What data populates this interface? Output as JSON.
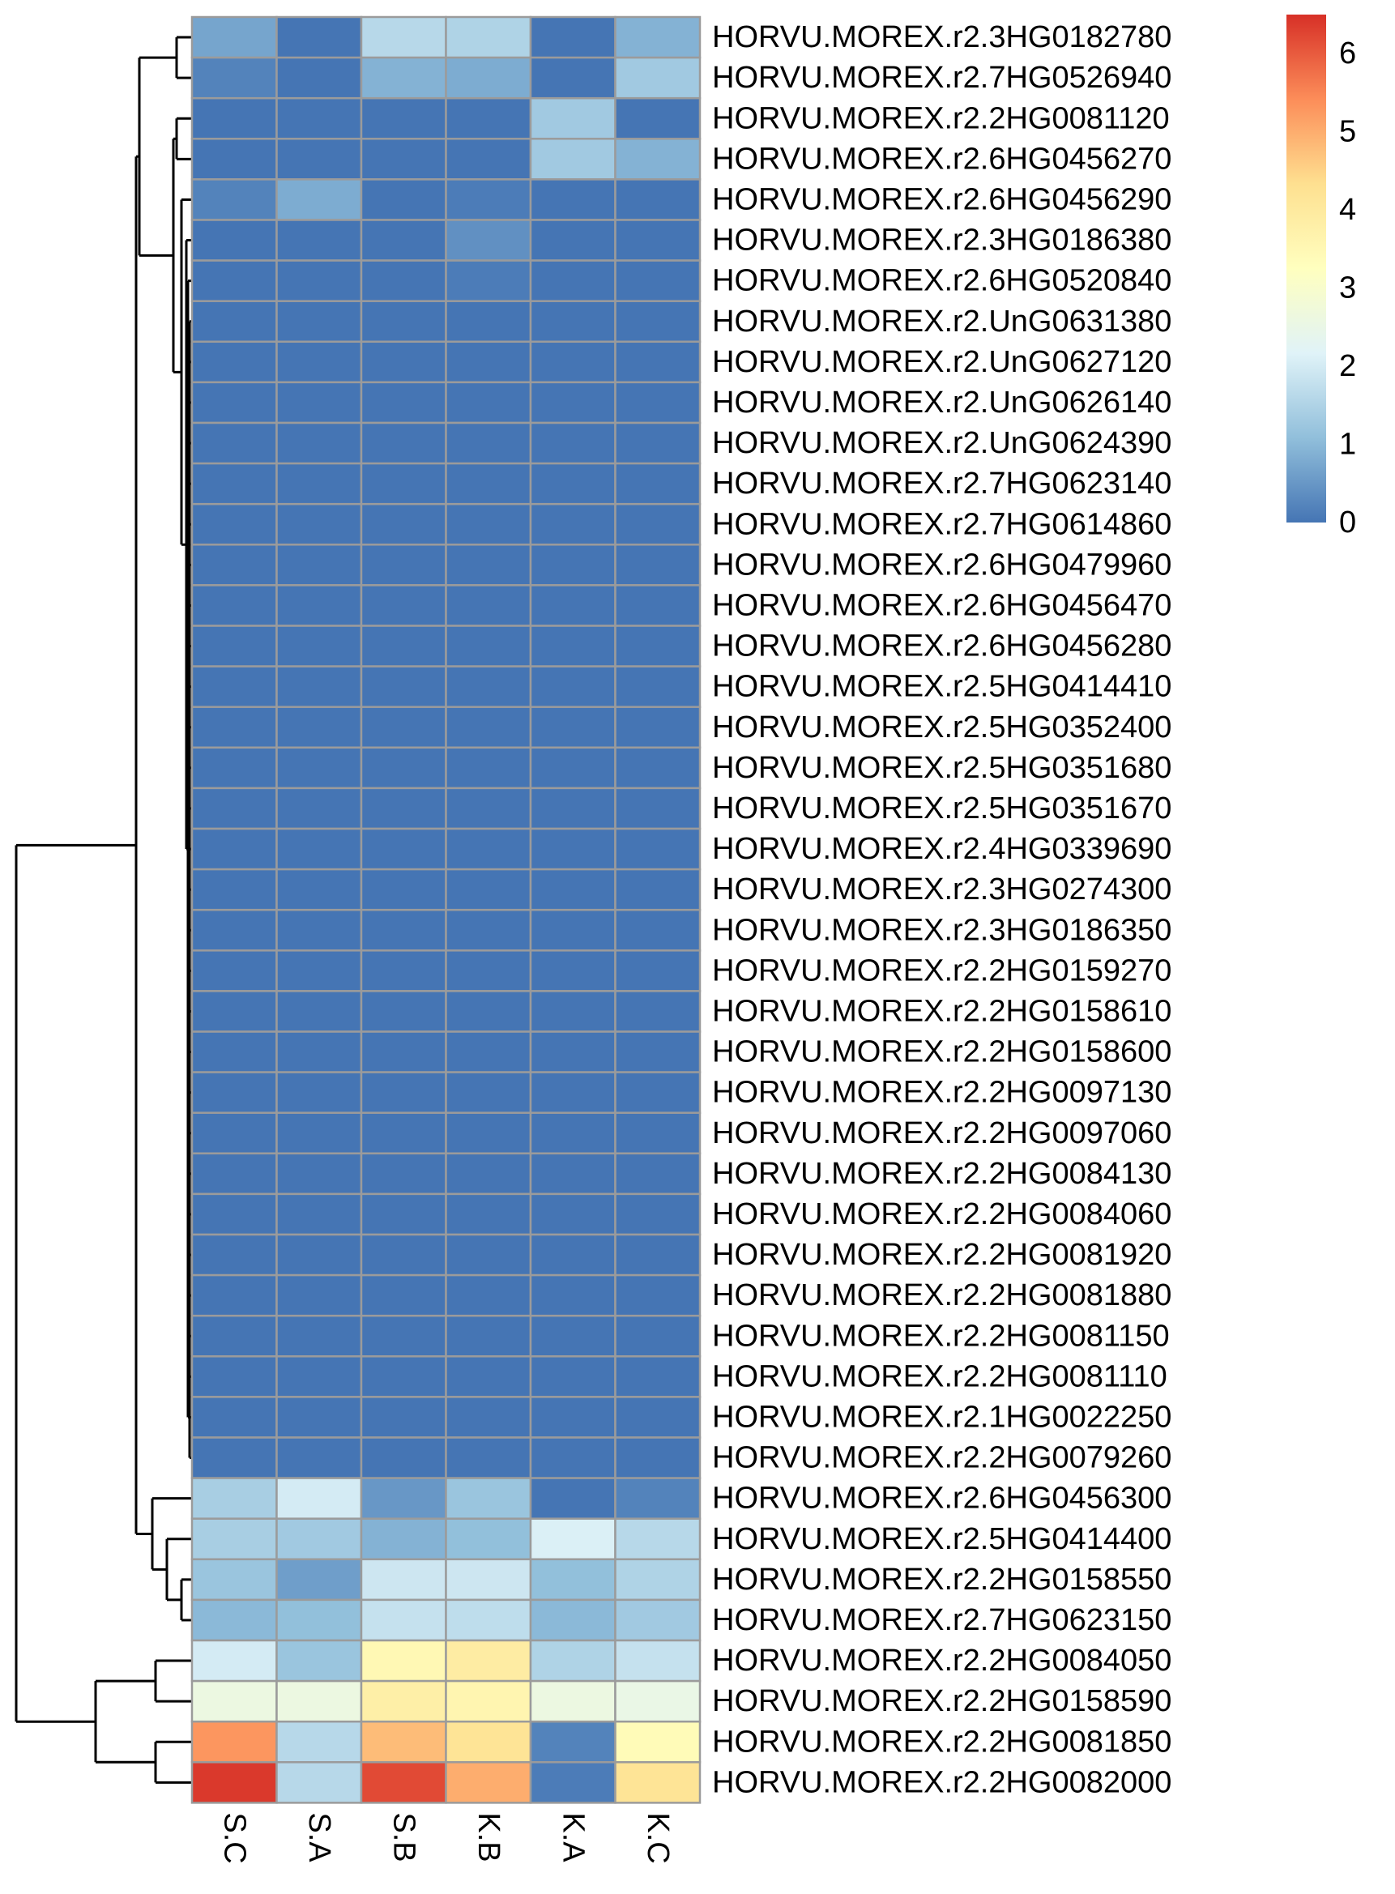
{
  "chart_data": {
    "type": "heatmap",
    "columns": [
      "S.C",
      "S.A",
      "S.B",
      "K.B",
      "K.A",
      "K.C"
    ],
    "rows": [
      "HORVU.MOREX.r2.3HG0182780",
      "HORVU.MOREX.r2.7HG0526940",
      "HORVU.MOREX.r2.2HG0081120",
      "HORVU.MOREX.r2.6HG0456270",
      "HORVU.MOREX.r2.6HG0456290",
      "HORVU.MOREX.r2.3HG0186380",
      "HORVU.MOREX.r2.6HG0520840",
      "HORVU.MOREX.r2.UnG0631380",
      "HORVU.MOREX.r2.UnG0627120",
      "HORVU.MOREX.r2.UnG0626140",
      "HORVU.MOREX.r2.UnG0624390",
      "HORVU.MOREX.r2.7HG0623140",
      "HORVU.MOREX.r2.7HG0614860",
      "HORVU.MOREX.r2.6HG0479960",
      "HORVU.MOREX.r2.6HG0456470",
      "HORVU.MOREX.r2.6HG0456280",
      "HORVU.MOREX.r2.5HG0414410",
      "HORVU.MOREX.r2.5HG0352400",
      "HORVU.MOREX.r2.5HG0351680",
      "HORVU.MOREX.r2.5HG0351670",
      "HORVU.MOREX.r2.4HG0339690",
      "HORVU.MOREX.r2.3HG0274300",
      "HORVU.MOREX.r2.3HG0186350",
      "HORVU.MOREX.r2.2HG0159270",
      "HORVU.MOREX.r2.2HG0158610",
      "HORVU.MOREX.r2.2HG0158600",
      "HORVU.MOREX.r2.2HG0097130",
      "HORVU.MOREX.r2.2HG0097060",
      "HORVU.MOREX.r2.2HG0084130",
      "HORVU.MOREX.r2.2HG0084060",
      "HORVU.MOREX.r2.2HG0081920",
      "HORVU.MOREX.r2.2HG0081880",
      "HORVU.MOREX.r2.2HG0081150",
      "HORVU.MOREX.r2.2HG0081110",
      "HORVU.MOREX.r2.1HG0022250",
      "HORVU.MOREX.r2.2HG0079260",
      "HORVU.MOREX.r2.6HG0456300",
      "HORVU.MOREX.r2.5HG0414400",
      "HORVU.MOREX.r2.2HG0158550",
      "HORVU.MOREX.r2.7HG0623150",
      "HORVU.MOREX.r2.2HG0084050",
      "HORVU.MOREX.r2.2HG0158590",
      "HORVU.MOREX.r2.2HG0081850",
      "HORVU.MOREX.r2.2HG0082000"
    ],
    "values": [
      [
        0.7,
        0.0,
        1.6,
        1.5,
        0.0,
        0.9
      ],
      [
        0.2,
        0.0,
        0.9,
        0.8,
        0.0,
        1.3
      ],
      [
        0.0,
        0.0,
        0.0,
        0.0,
        1.3,
        0.0
      ],
      [
        0.0,
        0.0,
        0.0,
        0.0,
        1.3,
        0.9
      ],
      [
        0.2,
        0.8,
        0.0,
        0.1,
        0.0,
        0.0
      ],
      [
        0.0,
        0.0,
        0.0,
        0.4,
        0.0,
        0.0
      ],
      [
        0.0,
        0.0,
        0.0,
        0.1,
        0.0,
        0.0
      ],
      [
        0.0,
        0.0,
        0.0,
        0.0,
        0.0,
        0.0
      ],
      [
        0.0,
        0.0,
        0.0,
        0.0,
        0.0,
        0.0
      ],
      [
        0.0,
        0.0,
        0.0,
        0.0,
        0.0,
        0.0
      ],
      [
        0.0,
        0.0,
        0.0,
        0.0,
        0.0,
        0.0
      ],
      [
        0.0,
        0.0,
        0.0,
        0.0,
        0.0,
        0.0
      ],
      [
        0.0,
        0.0,
        0.0,
        0.0,
        0.0,
        0.0
      ],
      [
        0.0,
        0.0,
        0.0,
        0.0,
        0.0,
        0.0
      ],
      [
        0.0,
        0.0,
        0.0,
        0.0,
        0.0,
        0.0
      ],
      [
        0.0,
        0.0,
        0.0,
        0.0,
        0.0,
        0.0
      ],
      [
        0.0,
        0.0,
        0.0,
        0.0,
        0.0,
        0.0
      ],
      [
        0.0,
        0.0,
        0.0,
        0.0,
        0.0,
        0.0
      ],
      [
        0.0,
        0.0,
        0.0,
        0.0,
        0.0,
        0.0
      ],
      [
        0.0,
        0.0,
        0.0,
        0.0,
        0.0,
        0.0
      ],
      [
        0.0,
        0.0,
        0.0,
        0.0,
        0.0,
        0.0
      ],
      [
        0.0,
        0.0,
        0.0,
        0.0,
        0.0,
        0.0
      ],
      [
        0.0,
        0.0,
        0.0,
        0.0,
        0.0,
        0.0
      ],
      [
        0.0,
        0.0,
        0.0,
        0.0,
        0.0,
        0.0
      ],
      [
        0.0,
        0.0,
        0.0,
        0.0,
        0.0,
        0.0
      ],
      [
        0.0,
        0.0,
        0.0,
        0.0,
        0.0,
        0.0
      ],
      [
        0.0,
        0.0,
        0.0,
        0.0,
        0.0,
        0.0
      ],
      [
        0.0,
        0.0,
        0.0,
        0.0,
        0.0,
        0.0
      ],
      [
        0.0,
        0.0,
        0.0,
        0.0,
        0.0,
        0.0
      ],
      [
        0.0,
        0.0,
        0.0,
        0.0,
        0.0,
        0.0
      ],
      [
        0.0,
        0.0,
        0.0,
        0.0,
        0.0,
        0.0
      ],
      [
        0.0,
        0.0,
        0.0,
        0.0,
        0.0,
        0.0
      ],
      [
        0.0,
        0.0,
        0.0,
        0.0,
        0.0,
        0.0
      ],
      [
        0.0,
        0.0,
        0.0,
        0.0,
        0.0,
        0.0
      ],
      [
        0.0,
        0.0,
        0.0,
        0.0,
        0.0,
        0.0
      ],
      [
        0.0,
        0.0,
        0.0,
        0.0,
        0.0,
        0.0
      ],
      [
        1.4,
        2.0,
        0.5,
        1.2,
        0.0,
        0.2
      ],
      [
        1.4,
        1.3,
        0.9,
        1.1,
        2.1,
        1.6
      ],
      [
        1.2,
        0.6,
        1.9,
        1.9,
        1.1,
        1.5
      ],
      [
        1.0,
        1.1,
        1.8,
        1.7,
        1.0,
        1.3
      ],
      [
        2.0,
        1.2,
        3.5,
        3.9,
        1.5,
        1.8
      ],
      [
        2.6,
        2.6,
        3.8,
        3.6,
        2.6,
        2.5
      ],
      [
        5.3,
        1.6,
        4.8,
        4.2,
        0.2,
        3.4
      ],
      [
        6.4,
        1.6,
        6.2,
        5.0,
        0.1,
        4.2
      ]
    ],
    "color_scale": {
      "min": 0,
      "max": 6.5,
      "colors": [
        "#4575b4",
        "#91bfdb",
        "#e0f3f8",
        "#ffffbf",
        "#fee090",
        "#fc8d59",
        "#d73027"
      ],
      "ticks": [
        0,
        1,
        2,
        3,
        4,
        5,
        6
      ]
    },
    "row_dendrogram": true,
    "legend": "top-right",
    "title": "",
    "xlabel": "",
    "ylabel": ""
  }
}
